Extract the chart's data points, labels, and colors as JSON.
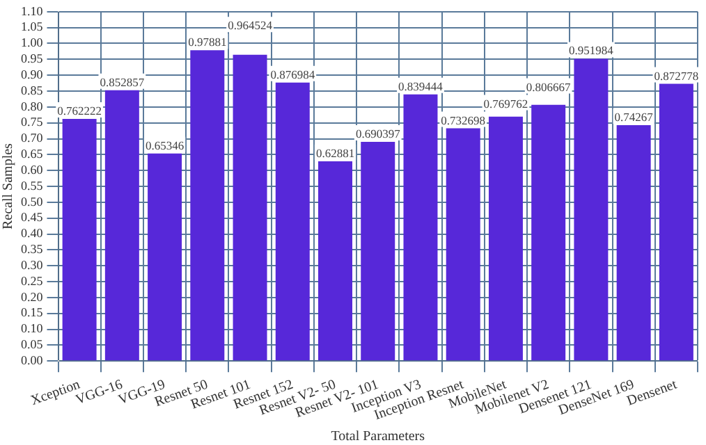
{
  "chart_data": {
    "type": "bar",
    "xlabel": "Total Parameters",
    "ylabel": "Recall Samples",
    "categories": [
      "Xception",
      "VGG-16",
      "VGG-19",
      "Resnet 50",
      "Resnet 101",
      "Resnet 152",
      "Resnet V2- 50",
      "Resnet V2- 101",
      "Inception V3",
      "Inception Resnet",
      "MobileNet",
      "Mobilenet V2",
      "Densenet 121",
      "DenseNet 169",
      "Densenet"
    ],
    "values": [
      0.762222,
      0.852857,
      0.65346,
      0.97881,
      0.964524,
      0.876984,
      0.62881,
      0.690397,
      0.839444,
      0.732698,
      0.769762,
      0.806667,
      0.951984,
      0.74267,
      0.872778
    ],
    "color": "#5728d9",
    "ylim": [
      0,
      1.1
    ],
    "yticks": [
      {
        "value": 0,
        "label": "0.00"
      },
      {
        "value": 0.05,
        "label": "0.05"
      },
      {
        "value": 0.1,
        "label": "0.10"
      },
      {
        "value": 0.15,
        "label": "0.15"
      },
      {
        "value": 0.2,
        "label": "0.20"
      },
      {
        "value": 0.25,
        "label": "0.25"
      },
      {
        "value": 0.3,
        "label": "0.30"
      },
      {
        "value": 0.35,
        "label": "0.35"
      },
      {
        "value": 0.4,
        "label": "0.40"
      },
      {
        "value": 0.45,
        "label": "0.45"
      },
      {
        "value": 0.5,
        "label": "0.50"
      },
      {
        "value": 0.55,
        "label": "0.55"
      },
      {
        "value": 0.6,
        "label": "0.60"
      },
      {
        "value": 0.65,
        "label": "0.65"
      },
      {
        "value": 0.7,
        "label": "0.70"
      },
      {
        "value": 0.75,
        "label": "0.75"
      },
      {
        "value": 0.8,
        "label": "0.80"
      },
      {
        "value": 0.85,
        "label": "0.85"
      },
      {
        "value": 0.9,
        "label": "0.90"
      },
      {
        "value": 0.95,
        "label": "0.95"
      },
      {
        "value": 1,
        "label": "1.00"
      },
      {
        "value": 1.05,
        "label": "1.05"
      },
      {
        "value": 1.1,
        "label": "1.10"
      }
    ],
    "grid": true,
    "data_labels": true
  }
}
